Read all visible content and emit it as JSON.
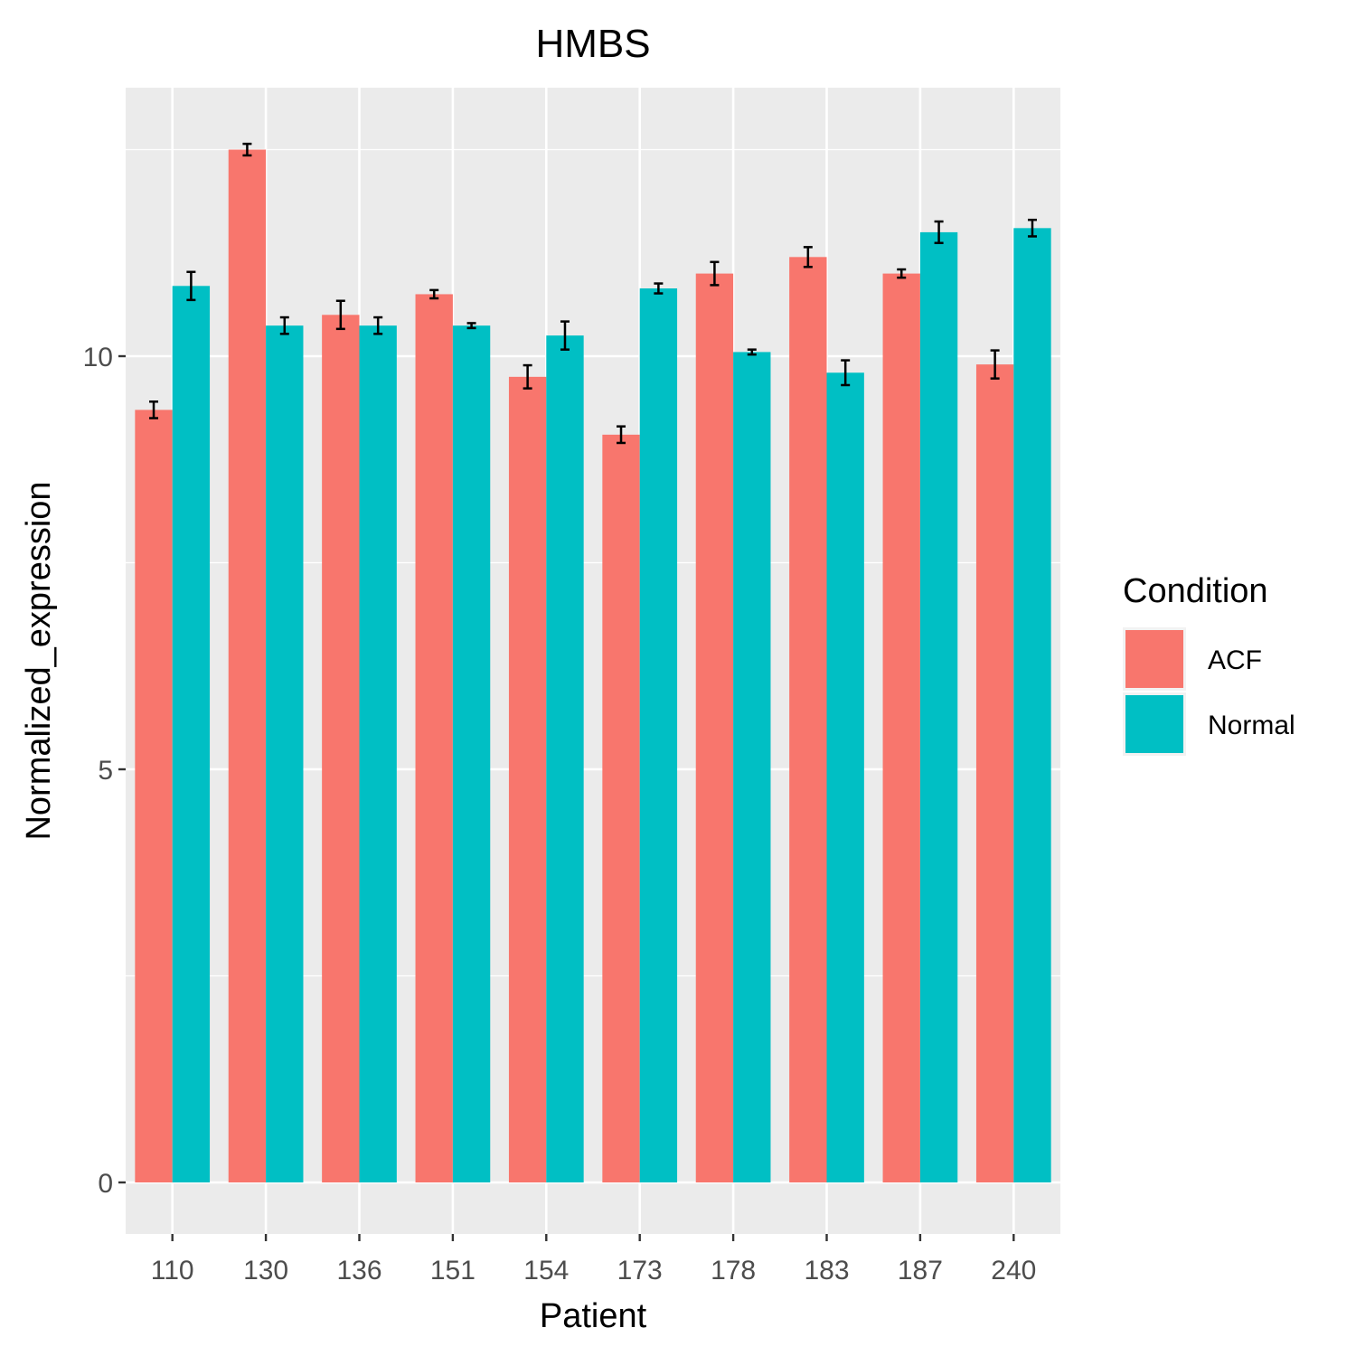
{
  "chart_data": {
    "type": "bar",
    "title": "HMBS",
    "xlabel": "Patient",
    "ylabel": "Normalized_expression",
    "categories": [
      "110",
      "130",
      "136",
      "151",
      "154",
      "173",
      "178",
      "183",
      "187",
      "240"
    ],
    "series": [
      {
        "name": "ACF",
        "color": "#F8766D",
        "values": [
          9.35,
          12.5,
          10.5,
          10.75,
          9.75,
          9.05,
          11.0,
          11.2,
          11.0,
          9.9
        ],
        "errors": [
          0.1,
          0.07,
          0.17,
          0.05,
          0.14,
          0.1,
          0.14,
          0.12,
          0.05,
          0.17
        ]
      },
      {
        "name": "Normal",
        "color": "#00BFC4",
        "values": [
          10.85,
          10.37,
          10.37,
          10.37,
          10.25,
          10.82,
          10.05,
          9.8,
          11.5,
          11.55
        ],
        "errors": [
          0.17,
          0.1,
          0.1,
          0.03,
          0.17,
          0.06,
          0.03,
          0.15,
          0.13,
          0.1
        ]
      }
    ],
    "ylim": [
      -0.6,
      13.8
    ],
    "yticks": [
      0,
      5,
      10
    ],
    "grid": true,
    "legend": {
      "title": "Condition",
      "position": "right"
    }
  }
}
